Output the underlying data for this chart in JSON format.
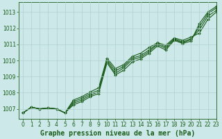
{
  "title": "Graphe pression niveau de la mer (hPa)",
  "background_color": "#cce8e8",
  "grid_color": "#b0d0d0",
  "line_color": "#1a5c1a",
  "xlim": [
    -0.5,
    23
  ],
  "ylim": [
    1006.4,
    1013.6
  ],
  "yticks": [
    1007,
    1008,
    1009,
    1010,
    1011,
    1012,
    1013
  ],
  "xticks": [
    0,
    1,
    2,
    3,
    4,
    5,
    6,
    7,
    8,
    9,
    10,
    11,
    12,
    13,
    14,
    15,
    16,
    17,
    18,
    19,
    20,
    21,
    22,
    23
  ],
  "xlabels": [
    "0",
    "1",
    "2",
    "3",
    "4",
    "5",
    "6",
    "7",
    "8",
    "9",
    "10",
    "11",
    "12",
    "13",
    "14",
    "15",
    "16",
    "17",
    "18",
    "19",
    "20",
    "21",
    "22",
    "23"
  ],
  "hours": [
    0,
    1,
    2,
    3,
    4,
    5,
    6,
    7,
    8,
    9,
    10,
    11,
    12,
    13,
    14,
    15,
    16,
    17,
    18,
    19,
    20,
    21,
    22,
    23
  ],
  "line1": [
    1006.75,
    1007.1,
    1007.0,
    1007.05,
    1007.0,
    1006.75,
    1007.25,
    1007.45,
    1007.75,
    1007.95,
    1009.85,
    1009.1,
    1009.4,
    1009.9,
    1010.1,
    1010.45,
    1010.9,
    1010.65,
    1011.25,
    1011.05,
    1011.2,
    1012.3,
    1013.0,
    1013.35
  ],
  "line2": [
    1006.75,
    1007.1,
    1007.0,
    1007.05,
    1007.0,
    1006.75,
    1007.35,
    1007.55,
    1007.85,
    1008.05,
    1009.95,
    1009.2,
    1009.55,
    1010.05,
    1010.2,
    1010.55,
    1011.0,
    1010.75,
    1011.3,
    1011.1,
    1011.3,
    1012.1,
    1012.9,
    1013.25
  ],
  "line3": [
    1006.75,
    1007.1,
    1007.0,
    1007.05,
    1007.0,
    1006.75,
    1007.45,
    1007.65,
    1007.95,
    1008.15,
    1010.05,
    1009.35,
    1009.65,
    1010.15,
    1010.3,
    1010.65,
    1011.05,
    1010.85,
    1011.35,
    1011.15,
    1011.35,
    1011.9,
    1012.75,
    1013.1
  ],
  "line4": [
    1006.75,
    1007.1,
    1007.0,
    1007.05,
    1007.0,
    1006.75,
    1007.55,
    1007.75,
    1008.05,
    1008.3,
    1010.15,
    1009.5,
    1009.75,
    1010.25,
    1010.45,
    1010.8,
    1011.1,
    1010.95,
    1011.4,
    1011.25,
    1011.45,
    1011.7,
    1012.55,
    1013.0
  ],
  "title_color": "#1a5c1a",
  "title_fontsize": 7.0,
  "tick_fontsize": 5.5,
  "line_width": 0.8,
  "marker_size": 2.0
}
